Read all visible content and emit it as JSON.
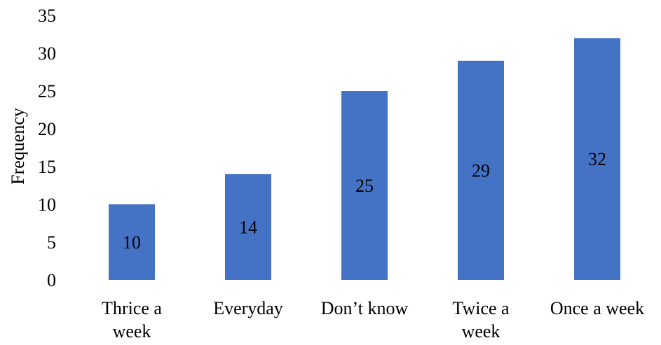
{
  "chart_data": {
    "type": "bar",
    "title": "",
    "xlabel": "",
    "ylabel": "Frequency",
    "ylim": [
      0,
      35
    ],
    "yticks": [
      0,
      5,
      10,
      15,
      20,
      25,
      30,
      35
    ],
    "grid": false,
    "legend": "none",
    "bar_color": "#4472C4",
    "categories": [
      [
        "Thrice a",
        "week"
      ],
      [
        "Everyday"
      ],
      [
        "Don’t know"
      ],
      [
        "Twice a",
        "week"
      ],
      [
        "Once a week"
      ]
    ],
    "values": [
      10,
      14,
      25,
      29,
      32
    ],
    "data_labels": [
      "10",
      "14",
      "25",
      "29",
      "32"
    ]
  }
}
